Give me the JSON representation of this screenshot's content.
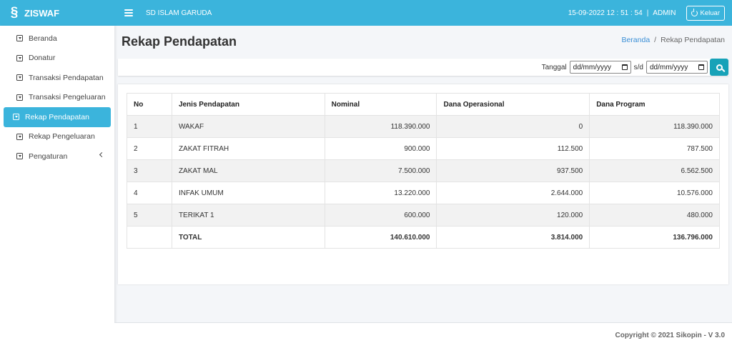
{
  "header": {
    "brand": "ZISWAF",
    "school": "SD ISLAM GARUDA",
    "datetime": "15-09-2022 12 : 51 : 54",
    "user": "ADMIN",
    "logout_label": "Keluar"
  },
  "sidebar": {
    "items": [
      {
        "label": "Beranda"
      },
      {
        "label": "Donatur"
      },
      {
        "label": "Transaksi Pendapatan"
      },
      {
        "label": "Transaksi Pengeluaran"
      },
      {
        "label": "Rekap Pendapatan"
      },
      {
        "label": "Rekap Pengeluaran"
      },
      {
        "label": "Pengaturan"
      }
    ]
  },
  "page": {
    "title": "Rekap Pendapatan",
    "breadcrumb_home": "Beranda",
    "breadcrumb_sep": "/",
    "breadcrumb_current": "Rekap Pendapatan"
  },
  "filter": {
    "label": "Tanggal",
    "date_from_placeholder": "dd/mm/yyyy",
    "separator": "s/d",
    "date_to_placeholder": "dd/mm/yyyy"
  },
  "table": {
    "headers": [
      "No",
      "Jenis Pendapatan",
      "Nominal",
      "Dana Operasional",
      "Dana Program"
    ],
    "rows": [
      [
        "1",
        "WAKAF",
        "118.390.000",
        "0",
        "118.390.000"
      ],
      [
        "2",
        "ZAKAT FITRAH",
        "900.000",
        "112.500",
        "787.500"
      ],
      [
        "3",
        "ZAKAT MAL",
        "7.500.000",
        "937.500",
        "6.562.500"
      ],
      [
        "4",
        "INFAK UMUM",
        "13.220.000",
        "2.644.000",
        "10.576.000"
      ],
      [
        "5",
        "TERIKAT 1",
        "600.000",
        "120.000",
        "480.000"
      ]
    ],
    "total": [
      "",
      "TOTAL",
      "140.610.000",
      "3.814.000",
      "136.796.000"
    ]
  },
  "footer": {
    "text": "Copyright © 2021 Sikopin - V 3.0"
  },
  "colors": {
    "accent": "#3bb4dc",
    "search_button": "#17a2b8",
    "link": "#3b8fd6"
  }
}
